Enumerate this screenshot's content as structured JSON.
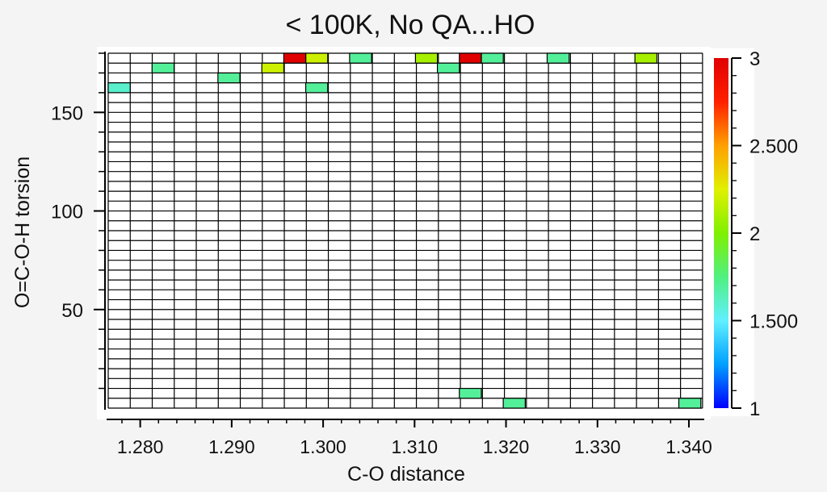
{
  "chart_data": {
    "type": "heatmap",
    "title": "< 100K, No QA...HO",
    "xlabel": "C-O distance",
    "ylabel": "O=C-O-H torsion",
    "xlim": [
      1.2765,
      1.3415
    ],
    "ylim": [
      0,
      180
    ],
    "x_bin_width": 0.002407,
    "y_bin_width": 5,
    "x_tick_values": [
      1.28,
      1.29,
      1.3,
      1.31,
      1.32,
      1.33,
      1.34
    ],
    "x_tick_labels": [
      "1.280",
      "1.290",
      "1.300",
      "1.310",
      "1.320",
      "1.330",
      "1.340"
    ],
    "y_tick_values": [
      50,
      100,
      150
    ],
    "y_tick_labels": [
      "50",
      "100",
      "150"
    ],
    "colorbar": {
      "min": 1,
      "max": 3,
      "tick_values": [
        1,
        1.5,
        2,
        2.5,
        3
      ],
      "tick_labels": [
        "1",
        "1.500",
        "2",
        "2.500",
        "3"
      ],
      "colors": [
        "#0000ff",
        "#00a0ff",
        "#60f0ff",
        "#50f080",
        "#80f000",
        "#e0f000",
        "#ffa000",
        "#ff2000",
        "#e00000"
      ]
    },
    "cells": [
      {
        "x": 1.2777,
        "y": 162.5,
        "value": 1.6
      },
      {
        "x": 1.2825,
        "y": 172.5,
        "value": 1.7
      },
      {
        "x": 1.2897,
        "y": 167.5,
        "value": 1.7
      },
      {
        "x": 1.2945,
        "y": 172.5,
        "value": 2.2
      },
      {
        "x": 1.2969,
        "y": 177.5,
        "value": 3
      },
      {
        "x": 1.2993,
        "y": 177.5,
        "value": 2.2
      },
      {
        "x": 1.2993,
        "y": 162.5,
        "value": 1.7
      },
      {
        "x": 1.3041,
        "y": 177.5,
        "value": 1.7
      },
      {
        "x": 1.3113,
        "y": 177.5,
        "value": 2.1
      },
      {
        "x": 1.3137,
        "y": 172.5,
        "value": 1.7
      },
      {
        "x": 1.3161,
        "y": 177.5,
        "value": 3
      },
      {
        "x": 1.3185,
        "y": 177.5,
        "value": 1.7
      },
      {
        "x": 1.3257,
        "y": 177.5,
        "value": 1.7
      },
      {
        "x": 1.3353,
        "y": 177.5,
        "value": 2.1
      },
      {
        "x": 1.3161,
        "y": 7.5,
        "value": 1.7
      },
      {
        "x": 1.3209,
        "y": 2.5,
        "value": 1.7
      },
      {
        "x": 1.3401,
        "y": 2.5,
        "value": 1.7
      }
    ]
  }
}
